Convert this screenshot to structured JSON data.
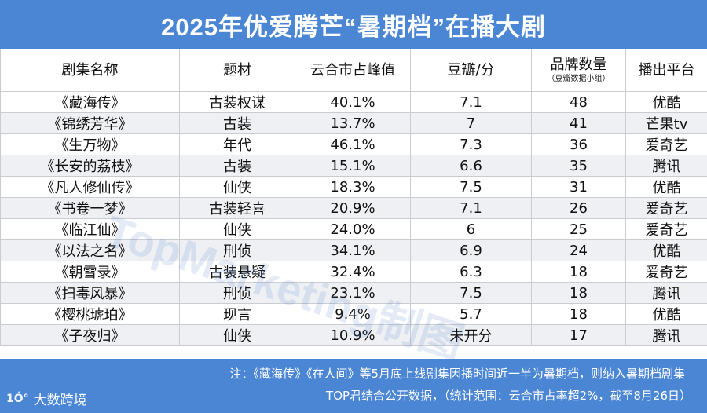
{
  "title": "2025年优爱腾芒“暑期档”在播大剧",
  "columns": [
    {
      "label": "剧集名称",
      "sub": ""
    },
    {
      "label": "题材",
      "sub": ""
    },
    {
      "label": "云合市占峰值",
      "sub": ""
    },
    {
      "label": "豆瓣/分",
      "sub": ""
    },
    {
      "label": "品牌数量",
      "sub": "（豆瓣数据小组）"
    },
    {
      "label": "播出平台",
      "sub": ""
    }
  ],
  "rows": [
    {
      "name": "《藏海传》",
      "genre": "古装权谋",
      "share": "40.1%",
      "douban": "7.1",
      "brands": "48",
      "platform": "优酷"
    },
    {
      "name": "《锦绣芳华》",
      "genre": "古装",
      "share": "13.7%",
      "douban": "7",
      "brands": "41",
      "platform": "芒果tv"
    },
    {
      "name": "《生万物》",
      "genre": "年代",
      "share": "46.1%",
      "douban": "7.3",
      "brands": "36",
      "platform": "爱奇艺"
    },
    {
      "name": "《长安的荔枝》",
      "genre": "古装",
      "share": "15.1%",
      "douban": "6.6",
      "brands": "35",
      "platform": "腾讯"
    },
    {
      "name": "《凡人修仙传》",
      "genre": "仙侠",
      "share": "18.3%",
      "douban": "7.5",
      "brands": "31",
      "platform": "优酷"
    },
    {
      "name": "《书卷一梦》",
      "genre": "古装轻喜",
      "share": "20.9%",
      "douban": "7.1",
      "brands": "26",
      "platform": "爱奇艺"
    },
    {
      "name": "《临江仙》",
      "genre": "仙侠",
      "share": "24.0%",
      "douban": "6",
      "brands": "25",
      "platform": "爱奇艺"
    },
    {
      "name": "《以法之名》",
      "genre": "刑侦",
      "share": "34.1%",
      "douban": "6.9",
      "brands": "24",
      "platform": "优酷"
    },
    {
      "name": "《朝雪录》",
      "genre": "古装悬疑",
      "share": "32.4%",
      "douban": "6.3",
      "brands": "18",
      "platform": "爱奇艺"
    },
    {
      "name": "《扫毒风暴》",
      "genre": "刑侦",
      "share": "23.1%",
      "douban": "7.5",
      "brands": "18",
      "platform": "腾讯"
    },
    {
      "name": "《樱桃琥珀》",
      "genre": "现言",
      "share": "9.4%",
      "douban": "5.7",
      "brands": "18",
      "platform": "优酷"
    },
    {
      "name": "《子夜归》",
      "genre": "仙侠",
      "share": "10.9%",
      "douban": "未开分",
      "brands": "17",
      "platform": "腾讯"
    }
  ],
  "footer": {
    "note_line1": "注：《藏海传》《在人间》等5月底上线剧集因播时间近一半为暑期档，则纳入暑期档剧集",
    "note_line2": "TOP君结合公开数据，（统计范围：云合市占率超2%，截至8月26日）",
    "logo_mark": "1Ó°",
    "logo_text": "大数跨境"
  },
  "watermark": "TopMarketing制图"
}
